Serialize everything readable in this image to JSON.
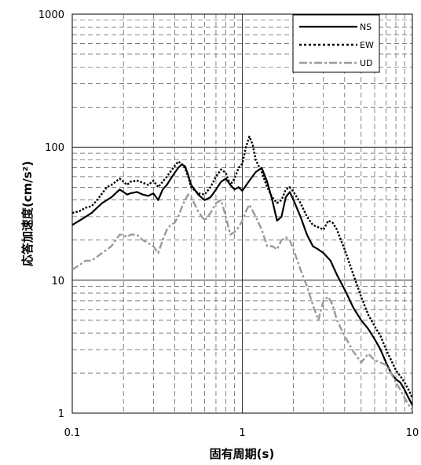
{
  "chart_data": {
    "type": "line",
    "title": "",
    "xlabel": "固有周期(s)",
    "ylabel": "応答加速度(cm/s²)",
    "xscale": "log",
    "yscale": "log",
    "xlim": [
      0.1,
      10
    ],
    "ylim": [
      1,
      1000
    ],
    "grid": "major solid, minor dashed",
    "legend_position": "top-right",
    "x_tick_labels": [
      "0.1",
      "1",
      "10"
    ],
    "y_tick_labels": [
      "1",
      "10",
      "100",
      "1000"
    ],
    "series": [
      {
        "name": "NS",
        "color": "#000000",
        "style": "solid",
        "points": [
          [
            0.1,
            26
          ],
          [
            0.11,
            28
          ],
          [
            0.12,
            30
          ],
          [
            0.13,
            32
          ],
          [
            0.14,
            35
          ],
          [
            0.15,
            38
          ],
          [
            0.16,
            40
          ],
          [
            0.17,
            42
          ],
          [
            0.18,
            45
          ],
          [
            0.19,
            48
          ],
          [
            0.2,
            46
          ],
          [
            0.21,
            44
          ],
          [
            0.22,
            45
          ],
          [
            0.24,
            46
          ],
          [
            0.26,
            44
          ],
          [
            0.28,
            43
          ],
          [
            0.3,
            45
          ],
          [
            0.32,
            40
          ],
          [
            0.34,
            48
          ],
          [
            0.36,
            52
          ],
          [
            0.38,
            58
          ],
          [
            0.4,
            64
          ],
          [
            0.42,
            70
          ],
          [
            0.44,
            74
          ],
          [
            0.46,
            72
          ],
          [
            0.48,
            62
          ],
          [
            0.5,
            52
          ],
          [
            0.55,
            44
          ],
          [
            0.6,
            40
          ],
          [
            0.65,
            42
          ],
          [
            0.7,
            48
          ],
          [
            0.75,
            55
          ],
          [
            0.8,
            58
          ],
          [
            0.85,
            52
          ],
          [
            0.9,
            48
          ],
          [
            0.95,
            50
          ],
          [
            1.0,
            47
          ],
          [
            1.1,
            56
          ],
          [
            1.2,
            65
          ],
          [
            1.3,
            70
          ],
          [
            1.4,
            55
          ],
          [
            1.5,
            40
          ],
          [
            1.6,
            28
          ],
          [
            1.7,
            30
          ],
          [
            1.8,
            42
          ],
          [
            1.9,
            46
          ],
          [
            2.0,
            40
          ],
          [
            2.2,
            30
          ],
          [
            2.4,
            22
          ],
          [
            2.6,
            18
          ],
          [
            2.8,
            17
          ],
          [
            3.0,
            16
          ],
          [
            3.3,
            14
          ],
          [
            3.6,
            11
          ],
          [
            4.0,
            8.5
          ],
          [
            4.5,
            6.2
          ],
          [
            5.0,
            5.0
          ],
          [
            5.5,
            4.3
          ],
          [
            6.0,
            3.6
          ],
          [
            6.5,
            3.0
          ],
          [
            7.0,
            2.4
          ],
          [
            7.5,
            2.0
          ],
          [
            8.0,
            1.8
          ],
          [
            8.5,
            1.7
          ],
          [
            9.0,
            1.5
          ],
          [
            9.5,
            1.3
          ],
          [
            10.0,
            1.15
          ]
        ]
      },
      {
        "name": "EW",
        "color": "#000000",
        "style": "dotted",
        "points": [
          [
            0.1,
            32
          ],
          [
            0.11,
            33
          ],
          [
            0.12,
            35
          ],
          [
            0.13,
            36
          ],
          [
            0.14,
            40
          ],
          [
            0.15,
            45
          ],
          [
            0.16,
            50
          ],
          [
            0.17,
            52
          ],
          [
            0.18,
            55
          ],
          [
            0.19,
            58
          ],
          [
            0.2,
            55
          ],
          [
            0.21,
            52
          ],
          [
            0.22,
            55
          ],
          [
            0.24,
            56
          ],
          [
            0.26,
            54
          ],
          [
            0.28,
            52
          ],
          [
            0.3,
            56
          ],
          [
            0.32,
            50
          ],
          [
            0.34,
            55
          ],
          [
            0.36,
            60
          ],
          [
            0.38,
            66
          ],
          [
            0.4,
            72
          ],
          [
            0.42,
            78
          ],
          [
            0.44,
            75
          ],
          [
            0.46,
            70
          ],
          [
            0.48,
            60
          ],
          [
            0.5,
            50
          ],
          [
            0.55,
            45
          ],
          [
            0.6,
            44
          ],
          [
            0.65,
            50
          ],
          [
            0.7,
            60
          ],
          [
            0.75,
            68
          ],
          [
            0.8,
            64
          ],
          [
            0.85,
            52
          ],
          [
            0.9,
            58
          ],
          [
            0.95,
            70
          ],
          [
            1.0,
            75
          ],
          [
            1.05,
            100
          ],
          [
            1.1,
            120
          ],
          [
            1.15,
            105
          ],
          [
            1.2,
            80
          ],
          [
            1.3,
            65
          ],
          [
            1.4,
            50
          ],
          [
            1.5,
            42
          ],
          [
            1.6,
            38
          ],
          [
            1.7,
            40
          ],
          [
            1.8,
            48
          ],
          [
            1.9,
            50
          ],
          [
            2.0,
            46
          ],
          [
            2.2,
            38
          ],
          [
            2.4,
            30
          ],
          [
            2.6,
            26
          ],
          [
            2.8,
            25
          ],
          [
            3.0,
            24
          ],
          [
            3.2,
            28
          ],
          [
            3.4,
            27
          ],
          [
            3.6,
            24
          ],
          [
            4.0,
            17
          ],
          [
            4.5,
            11
          ],
          [
            5.0,
            7.5
          ],
          [
            5.5,
            5.5
          ],
          [
            6.0,
            4.5
          ],
          [
            6.5,
            3.8
          ],
          [
            7.0,
            3.0
          ],
          [
            7.5,
            2.5
          ],
          [
            8.0,
            2.1
          ],
          [
            8.5,
            1.9
          ],
          [
            9.0,
            1.7
          ],
          [
            9.5,
            1.5
          ],
          [
            10.0,
            1.3
          ]
        ]
      },
      {
        "name": "UD",
        "color": "#9a9a9a",
        "style": "dashdot",
        "points": [
          [
            0.1,
            12
          ],
          [
            0.11,
            13
          ],
          [
            0.12,
            14
          ],
          [
            0.13,
            14
          ],
          [
            0.14,
            15
          ],
          [
            0.15,
            16
          ],
          [
            0.16,
            17
          ],
          [
            0.17,
            18
          ],
          [
            0.18,
            20
          ],
          [
            0.19,
            22
          ],
          [
            0.2,
            22
          ],
          [
            0.21,
            21
          ],
          [
            0.22,
            22
          ],
          [
            0.24,
            22
          ],
          [
            0.26,
            20
          ],
          [
            0.28,
            19
          ],
          [
            0.3,
            18
          ],
          [
            0.32,
            16
          ],
          [
            0.34,
            20
          ],
          [
            0.36,
            24
          ],
          [
            0.38,
            26
          ],
          [
            0.4,
            27
          ],
          [
            0.42,
            30
          ],
          [
            0.44,
            35
          ],
          [
            0.46,
            40
          ],
          [
            0.48,
            44
          ],
          [
            0.5,
            42
          ],
          [
            0.55,
            33
          ],
          [
            0.6,
            28
          ],
          [
            0.65,
            32
          ],
          [
            0.7,
            38
          ],
          [
            0.75,
            40
          ],
          [
            0.8,
            30
          ],
          [
            0.85,
            22
          ],
          [
            0.9,
            23
          ],
          [
            0.95,
            25
          ],
          [
            1.0,
            28
          ],
          [
            1.05,
            33
          ],
          [
            1.1,
            37
          ],
          [
            1.2,
            30
          ],
          [
            1.3,
            24
          ],
          [
            1.4,
            18
          ],
          [
            1.5,
            18
          ],
          [
            1.6,
            17
          ],
          [
            1.7,
            20
          ],
          [
            1.8,
            21
          ],
          [
            1.9,
            20
          ],
          [
            2.0,
            17
          ],
          [
            2.2,
            12
          ],
          [
            2.4,
            9
          ],
          [
            2.6,
            6.5
          ],
          [
            2.8,
            5.0
          ],
          [
            3.0,
            7.0
          ],
          [
            3.2,
            7.5
          ],
          [
            3.4,
            6.5
          ],
          [
            3.6,
            5.0
          ],
          [
            4.0,
            3.8
          ],
          [
            4.5,
            2.9
          ],
          [
            5.0,
            2.4
          ],
          [
            5.5,
            2.8
          ],
          [
            6.0,
            2.5
          ],
          [
            6.5,
            2.4
          ],
          [
            7.0,
            2.3
          ],
          [
            7.5,
            2.0
          ],
          [
            8.0,
            1.7
          ],
          [
            8.5,
            1.5
          ],
          [
            9.0,
            1.3
          ],
          [
            9.5,
            1.15
          ],
          [
            10.0,
            1.05
          ]
        ]
      }
    ]
  }
}
